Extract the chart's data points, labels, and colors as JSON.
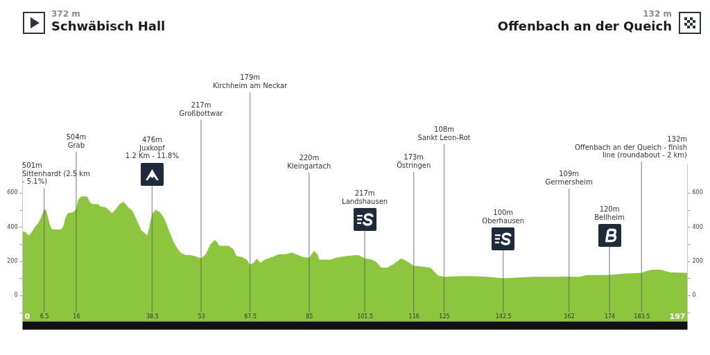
{
  "chart_data": {
    "type": "area",
    "annotations": [
      "372 m",
      "Schwäbisch Hall",
      "132 m",
      "Offenbach an der Queich"
    ],
    "x": [
      0,
      0.9,
      1.9,
      2.9,
      4,
      4.8,
      5.6,
      6.5,
      7,
      7.6,
      8.3,
      8.9,
      11.5,
      12.2,
      12.9,
      13.6,
      15.1,
      16,
      16.5,
      17.2,
      17.8,
      19.2,
      20.2,
      20.9,
      22.5,
      23.2,
      24.6,
      25.6,
      26.6,
      27.6,
      28.9,
      30,
      30.6,
      31.7,
      32.7,
      34.1,
      35.4,
      37.1,
      38.5,
      39.5,
      40.8,
      41.8,
      42.5,
      43.5,
      44.9,
      45.9,
      46.9,
      48.3,
      49.6,
      51,
      52,
      53,
      54.4,
      55.7,
      57.1,
      57.8,
      58.4,
      61.1,
      62.5,
      63.5,
      65,
      66.5,
      67.5,
      68.5,
      69.5,
      70.6,
      72,
      74.2,
      76,
      78,
      80,
      83,
      85,
      86.5,
      87.5,
      88,
      91.3,
      93,
      96.1,
      99.6,
      101.5,
      103.6,
      104.9,
      106.4,
      108.1,
      110,
      112.3,
      113.7,
      116,
      118,
      120.9,
      122.3,
      123.3,
      125,
      130,
      133,
      137.7,
      142.5,
      151.6,
      162,
      165,
      167.3,
      174,
      178.8,
      183.5,
      185,
      186.5,
      189.3,
      190.5,
      192,
      197
    ],
    "values": [
      372,
      372,
      350,
      372,
      405,
      425,
      455,
      501,
      500,
      459,
      405,
      385,
      385,
      405,
      459,
      480,
      486,
      504,
      554,
      574,
      578,
      578,
      540,
      534,
      534,
      520,
      516,
      500,
      480,
      500,
      534,
      547,
      534,
      510,
      493,
      432,
      378,
      351,
      476,
      500,
      486,
      459,
      432,
      378,
      311,
      277,
      250,
      236,
      236,
      230,
      223,
      217,
      240,
      297,
      324,
      311,
      290,
      290,
      270,
      230,
      225,
      210,
      179,
      190,
      215,
      190,
      210,
      225,
      240,
      240,
      250,
      225,
      220,
      260,
      240,
      209,
      209,
      220,
      230,
      236,
      217,
      209,
      196,
      162,
      162,
      182,
      216,
      203,
      173,
      169,
      162,
      135,
      115,
      108,
      112,
      112,
      108,
      100,
      108,
      109,
      108,
      119,
      120,
      128,
      132,
      142,
      150,
      150,
      142,
      135,
      132
    ],
    "color": "#8cc63f",
    "xlim": [
      0,
      197
    ],
    "xticks": [
      0,
      6.5,
      16,
      38.5,
      53,
      67.5,
      85,
      101.5,
      116,
      125,
      142.5,
      162,
      174,
      183.5,
      197
    ],
    "ylim": [
      -150,
      770
    ],
    "yticks": [
      {
        "value": -100,
        "label": null
      },
      0,
      {
        "value": 100,
        "label": null
      },
      200,
      {
        "value": 300,
        "label": null
      },
      400,
      {
        "value": 500,
        "label": null
      },
      600
    ],
    "y2lim": [
      -150,
      770
    ],
    "y2ticks": [
      {
        "value": -100,
        "label": null
      },
      0,
      {
        "value": 100,
        "label": null
      },
      200,
      {
        "value": 300,
        "label": null
      },
      400,
      {
        "value": 500,
        "label": null
      },
      600
    ],
    "bands": [
      {
        "axis": "y",
        "from": -150,
        "to": 0,
        "color": "#8cc63f"
      }
    ],
    "ref_lines": [
      {
        "axis": "x",
        "value": 6.5,
        "label": "501m\nSittenhardt (2.5 km\n- 5.1%)"
      },
      {
        "axis": "x",
        "value": 16,
        "label": "504m\nGrab"
      },
      {
        "axis": "x",
        "value": 38.5,
        "label": "476m\nJuxkopf\n1.2 Km - 11.8%"
      },
      {
        "axis": "x",
        "value": 53,
        "label": "217m\nGroßbottwar"
      },
      {
        "axis": "x",
        "value": 67.5,
        "label": "179m\nKirchheim am Neckar"
      },
      {
        "axis": "x",
        "value": 85,
        "label": "220m\nKleingartach"
      },
      {
        "axis": "x",
        "value": 101.5,
        "label": "217m\nLandshausen"
      },
      {
        "axis": "x",
        "value": 116,
        "label": "173m\nÖstringen"
      },
      {
        "axis": "x",
        "value": 125,
        "label": "108m\nSankt Leon-Rot"
      },
      {
        "axis": "x",
        "value": 142.5,
        "label": "100m\nOberhausen"
      },
      {
        "axis": "x",
        "value": 162,
        "label": "109m\nGermersheim"
      },
      {
        "axis": "x",
        "value": 174,
        "label": "120m\nBellheim"
      },
      {
        "axis": "x",
        "value": 183.5,
        "label": "132m\nOffenbach an der Queich - finish\nline (roundabout - 2 km)"
      }
    ]
  }
}
